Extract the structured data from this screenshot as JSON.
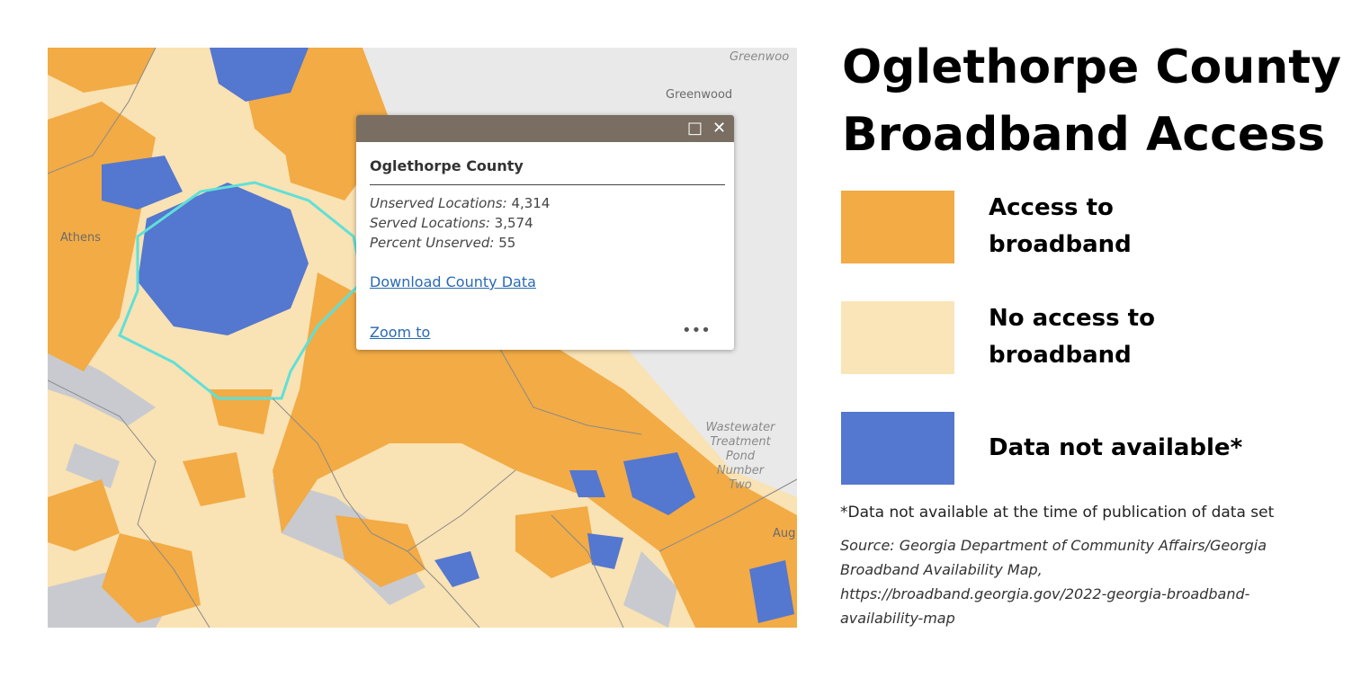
{
  "map": {
    "labels": {
      "greenwood_top": "Greenwoo",
      "greenwood": "Greenwood",
      "athens": "Athens",
      "wastewater": [
        "Wastewater",
        "Treatment",
        "Pond",
        "Number",
        "Two"
      ],
      "augusta": "Aug"
    }
  },
  "popup": {
    "title": "Oglethorpe County",
    "fields": [
      {
        "label": "Unserved Locations:",
        "value": "4,314"
      },
      {
        "label": "Served Locations:",
        "value": "3,574"
      },
      {
        "label": "Percent Unserved:",
        "value": "55"
      }
    ],
    "download_link": "Download County Data",
    "zoom_link": "Zoom to"
  },
  "title": [
    "Oglethorpe County",
    "Broadband Access"
  ],
  "legend": [
    {
      "label": [
        "Access to",
        "broadband"
      ],
      "color": "#f2ab45"
    },
    {
      "label": [
        "No access to",
        "broadband"
      ],
      "color": "#f9e5b8"
    },
    {
      "label": [
        "Data not available*"
      ],
      "color": "#5477cf"
    }
  ],
  "footnote": "*Data not available at the time of publication of data set",
  "source": [
    "Source: Georgia Department of Community Affairs/Georgia",
    "Broadband Availability Map,",
    "https://broadband.georgia.gov/2022-georgia-broadband-",
    "availability-map"
  ]
}
